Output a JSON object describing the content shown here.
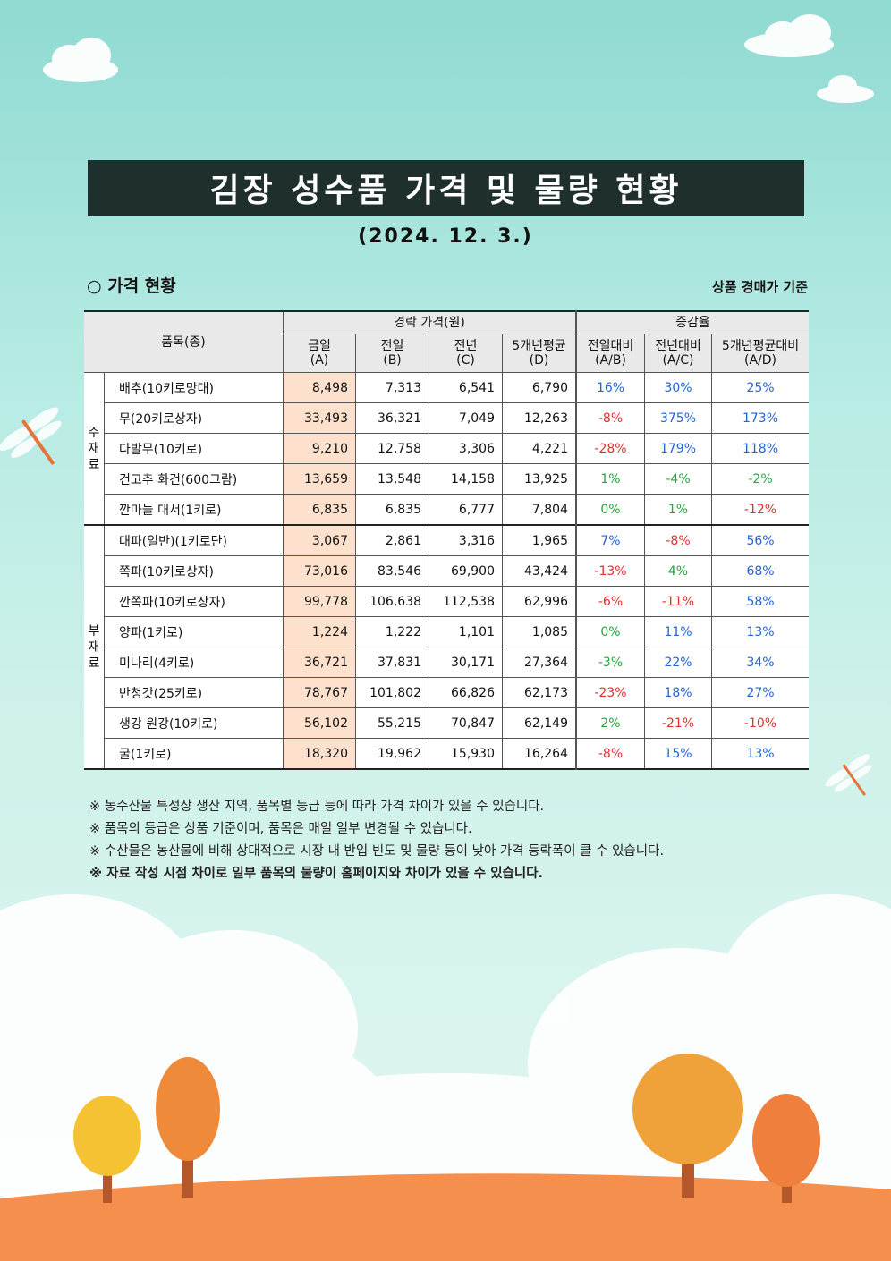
{
  "title": "김장 성수품 가격 및 물량 현황",
  "date": "(2024. 12. 3.)",
  "section_label": "가격 현황",
  "section_bullet": "○",
  "basis": "상품 경매가 기준",
  "table": {
    "item_header": "품목(종)",
    "price_group": "경락 가격(원)",
    "rate_group": "증감율",
    "columns": [
      {
        "label": "금일",
        "sub": "(A)"
      },
      {
        "label": "전일",
        "sub": "(B)"
      },
      {
        "label": "전년",
        "sub": "(C)"
      },
      {
        "label": "5개년평균",
        "sub": "(D)"
      },
      {
        "label": "전일대비",
        "sub": "(A/B)"
      },
      {
        "label": "전년대비",
        "sub": "(A/C)"
      },
      {
        "label": "5개년평균대비",
        "sub": "(A/D)"
      }
    ],
    "categories": [
      {
        "label_chars": [
          "주",
          "재",
          "료"
        ],
        "label": "주재료"
      },
      {
        "label_chars": [
          "부",
          "재",
          "료"
        ],
        "label": "부재료"
      }
    ],
    "rows": [
      {
        "name": "배추(10키로망대)",
        "today": "8,498",
        "prev_day": "7,313",
        "prev_year": "6,541",
        "avg5": "6,790",
        "r1": "16%",
        "r2": "30%",
        "r3": "25%",
        "c1": "blue",
        "c2": "blue",
        "c3": "blue"
      },
      {
        "name": "무(20키로상자)",
        "today": "33,493",
        "prev_day": "36,321",
        "prev_year": "7,049",
        "avg5": "12,263",
        "r1": "-8%",
        "r2": "375%",
        "r3": "173%",
        "c1": "red",
        "c2": "blue",
        "c3": "blue"
      },
      {
        "name": "다발무(10키로)",
        "today": "9,210",
        "prev_day": "12,758",
        "prev_year": "3,306",
        "avg5": "4,221",
        "r1": "-28%",
        "r2": "179%",
        "r3": "118%",
        "c1": "red",
        "c2": "blue",
        "c3": "blue"
      },
      {
        "name": "건고추 화건(600그람)",
        "today": "13,659",
        "prev_day": "13,548",
        "prev_year": "14,158",
        "avg5": "13,925",
        "r1": "1%",
        "r2": "-4%",
        "r3": "-2%",
        "c1": "green",
        "c2": "green",
        "c3": "green"
      },
      {
        "name": "깐마늘 대서(1키로)",
        "today": "6,835",
        "prev_day": "6,835",
        "prev_year": "6,777",
        "avg5": "7,804",
        "r1": "0%",
        "r2": "1%",
        "r3": "-12%",
        "c1": "green",
        "c2": "green",
        "c3": "red"
      },
      {
        "name": "대파(일반)(1키로단)",
        "today": "3,067",
        "prev_day": "2,861",
        "prev_year": "3,316",
        "avg5": "1,965",
        "r1": "7%",
        "r2": "-8%",
        "r3": "56%",
        "c1": "blue",
        "c2": "red",
        "c3": "blue"
      },
      {
        "name": "쪽파(10키로상자)",
        "today": "73,016",
        "prev_day": "83,546",
        "prev_year": "69,900",
        "avg5": "43,424",
        "r1": "-13%",
        "r2": "4%",
        "r3": "68%",
        "c1": "red",
        "c2": "green",
        "c3": "blue"
      },
      {
        "name": "깐쪽파(10키로상자)",
        "today": "99,778",
        "prev_day": "106,638",
        "prev_year": "112,538",
        "avg5": "62,996",
        "r1": "-6%",
        "r2": "-11%",
        "r3": "58%",
        "c1": "red",
        "c2": "red",
        "c3": "blue"
      },
      {
        "name": "양파(1키로)",
        "today": "1,224",
        "prev_day": "1,222",
        "prev_year": "1,101",
        "avg5": "1,085",
        "r1": "0%",
        "r2": "11%",
        "r3": "13%",
        "c1": "green",
        "c2": "blue",
        "c3": "blue"
      },
      {
        "name": "미나리(4키로)",
        "today": "36,721",
        "prev_day": "37,831",
        "prev_year": "30,171",
        "avg5": "27,364",
        "r1": "-3%",
        "r2": "22%",
        "r3": "34%",
        "c1": "green",
        "c2": "blue",
        "c3": "blue"
      },
      {
        "name": "반청갓(25키로)",
        "today": "78,767",
        "prev_day": "101,802",
        "prev_year": "66,826",
        "avg5": "62,173",
        "r1": "-23%",
        "r2": "18%",
        "r3": "27%",
        "c1": "red",
        "c2": "blue",
        "c3": "blue"
      },
      {
        "name": "생강 원강(10키로)",
        "today": "56,102",
        "prev_day": "55,215",
        "prev_year": "70,847",
        "avg5": "62,149",
        "r1": "2%",
        "r2": "-21%",
        "r3": "-10%",
        "c1": "green",
        "c2": "red",
        "c3": "red"
      },
      {
        "name": "굴(1키로)",
        "today": "18,320",
        "prev_day": "19,962",
        "prev_year": "15,930",
        "avg5": "16,264",
        "r1": "-8%",
        "r2": "15%",
        "r3": "13%",
        "c1": "red",
        "c2": "blue",
        "c3": "blue"
      }
    ]
  },
  "notes": [
    "※ 농수산물 특성상 생산 지역, 품목별 등급 등에 따라 가격 차이가 있을 수 있습니다.",
    "※ 품목의 등급은 상품 기준이며, 품목은 매일 일부 변경될 수 있습니다.",
    "※ 수산물은 농산물에 비해 상대적으로 시장 내 반입 빈도 및 물량 등이 낮아 가격 등락폭이 클 수 있습니다.",
    "※ 자료 작성 시점 차이로 일부 품목의 물량이 홈페이지와 차이가 있을 수 있습니다."
  ],
  "colors": {
    "title_bg": "#1f2f2d",
    "today_bg": "#fde1cc",
    "increase": "#2464d8",
    "decrease": "#e03030",
    "small_change": "#27a340"
  }
}
